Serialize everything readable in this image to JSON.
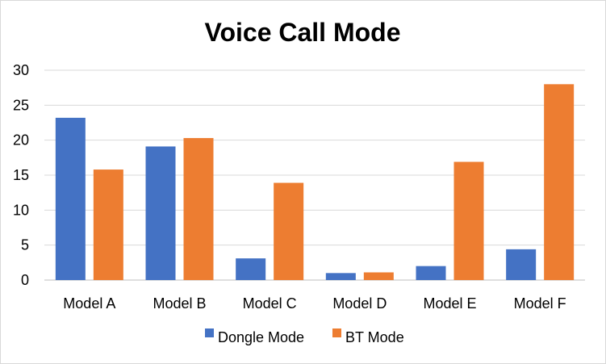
{
  "chart_data": {
    "type": "bar",
    "title": "Voice Call Mode",
    "xlabel": "",
    "ylabel": "",
    "categories": [
      "Model A",
      "Model B",
      "Model C",
      "Model D",
      "Model E",
      "Model F"
    ],
    "series": [
      {
        "name": "Dongle Mode",
        "color": "#4472C4",
        "values": [
          23.2,
          19.1,
          3.1,
          1.0,
          2.0,
          4.4
        ]
      },
      {
        "name": "BT Mode",
        "color": "#ED7D31",
        "values": [
          15.8,
          20.3,
          13.9,
          1.1,
          16.9,
          28.0
        ]
      }
    ],
    "ylim": [
      0,
      30
    ],
    "yticks": [
      0,
      5,
      10,
      15,
      20,
      25,
      30
    ],
    "grid": true,
    "legend_position": "bottom"
  }
}
